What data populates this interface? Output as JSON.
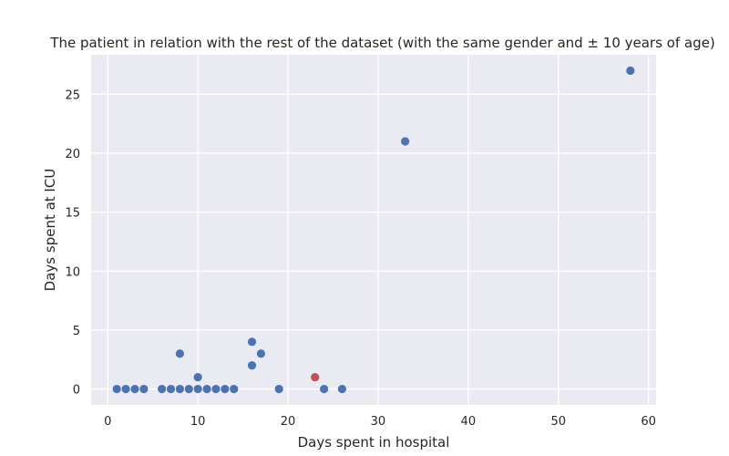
{
  "chart_data": {
    "type": "scatter",
    "title": "The patient in relation with the rest of the dataset (with the same gender and ± 10 years of age)",
    "xlabel": "Days spent in hospital",
    "ylabel": "Days spent at ICU",
    "xlim": [
      -1.85,
      60.85
    ],
    "ylim": [
      -1.35,
      28.35
    ],
    "xticks": [
      0,
      10,
      20,
      30,
      40,
      50,
      60
    ],
    "yticks": [
      0,
      5,
      10,
      15,
      20,
      25
    ],
    "grid": true,
    "colors": {
      "background": "#eaeaf2",
      "grid": "#ffffff",
      "dataset_point": "#4c72b0",
      "patient_point": "#c44e52"
    },
    "series": [
      {
        "color": "#4c72b0",
        "points": [
          [
            1,
            0
          ],
          [
            2,
            0
          ],
          [
            3,
            0
          ],
          [
            4,
            0
          ],
          [
            6,
            0
          ],
          [
            7,
            0
          ],
          [
            8,
            0
          ],
          [
            8,
            3
          ],
          [
            9,
            0
          ],
          [
            10,
            0
          ],
          [
            10,
            1
          ],
          [
            11,
            0
          ],
          [
            12,
            0
          ],
          [
            13,
            0
          ],
          [
            14,
            0
          ],
          [
            16,
            4
          ],
          [
            16,
            2
          ],
          [
            17,
            3
          ],
          [
            19,
            0
          ],
          [
            24,
            0
          ],
          [
            26,
            0
          ],
          [
            33,
            21
          ],
          [
            58,
            27
          ]
        ]
      },
      {
        "color": "#c44e52",
        "points": [
          [
            23,
            1
          ]
        ]
      }
    ]
  }
}
